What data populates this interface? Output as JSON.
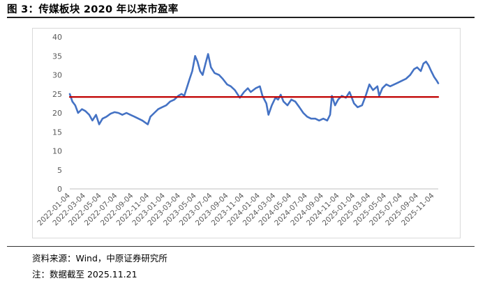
{
  "title": "图 3：传媒板块 2020 年以来市盈率",
  "source": "资料来源：Wind，中原证券研究所",
  "note": "注：数据截至 2025.11.21",
  "chart_data": {
    "type": "line",
    "title": "",
    "xlabel": "",
    "ylabel": "",
    "ylim": [
      0,
      40
    ],
    "yticks": [
      0,
      5,
      10,
      15,
      20,
      25,
      30,
      35,
      40
    ],
    "grid": false,
    "legend": "none",
    "x_tick_labels": [
      "2022-01-04",
      "2022-03-04",
      "2022-05-04",
      "2022-07-04",
      "2022-09-04",
      "2022-11-04",
      "2023-01-04",
      "2023-03-04",
      "2023-05-04",
      "2023-07-04",
      "2023-09-04",
      "2023-11-04",
      "2024-01-04",
      "2024-03-04",
      "2024-05-04",
      "2024-07-04",
      "2024-09-04",
      "2024-11-04",
      "2025-01-04",
      "2025-03-04",
      "2025-05-04",
      "2025-07-04",
      "2025-09-04",
      "2025-11-04"
    ],
    "series": [
      {
        "color": "#4472c4",
        "points": [
          [
            "2022-01-04",
            25.0
          ],
          [
            "2022-01-14",
            23.0
          ],
          [
            "2022-01-25",
            22.0
          ],
          [
            "2022-02-05",
            20.0
          ],
          [
            "2022-02-20",
            21.0
          ],
          [
            "2022-03-05",
            20.5
          ],
          [
            "2022-03-20",
            19.5
          ],
          [
            "2022-04-01",
            18.0
          ],
          [
            "2022-04-15",
            19.5
          ],
          [
            "2022-04-27",
            17.0
          ],
          [
            "2022-05-10",
            18.5
          ],
          [
            "2022-05-25",
            19.0
          ],
          [
            "2022-06-10",
            19.8
          ],
          [
            "2022-06-25",
            20.2
          ],
          [
            "2022-07-10",
            20.0
          ],
          [
            "2022-07-25",
            19.5
          ],
          [
            "2022-08-10",
            20.0
          ],
          [
            "2022-08-25",
            19.5
          ],
          [
            "2022-09-10",
            19.0
          ],
          [
            "2022-09-25",
            18.5
          ],
          [
            "2022-10-10",
            18.0
          ],
          [
            "2022-10-20",
            17.5
          ],
          [
            "2022-10-31",
            17.0
          ],
          [
            "2022-11-10",
            19.0
          ],
          [
            "2022-11-25",
            20.0
          ],
          [
            "2022-12-10",
            21.0
          ],
          [
            "2022-12-25",
            21.5
          ],
          [
            "2023-01-10",
            22.0
          ],
          [
            "2023-01-25",
            23.0
          ],
          [
            "2023-02-10",
            23.5
          ],
          [
            "2023-02-25",
            24.5
          ],
          [
            "2023-03-10",
            25.0
          ],
          [
            "2023-03-20",
            24.5
          ],
          [
            "2023-04-01",
            27.0
          ],
          [
            "2023-04-10",
            29.0
          ],
          [
            "2023-04-20",
            31.0
          ],
          [
            "2023-05-01",
            35.0
          ],
          [
            "2023-05-10",
            33.5
          ],
          [
            "2023-05-20",
            31.0
          ],
          [
            "2023-05-30",
            30.0
          ],
          [
            "2023-06-10",
            33.0
          ],
          [
            "2023-06-20",
            35.5
          ],
          [
            "2023-07-01",
            32.0
          ],
          [
            "2023-07-15",
            30.5
          ],
          [
            "2023-08-01",
            30.0
          ],
          [
            "2023-08-15",
            29.0
          ],
          [
            "2023-09-01",
            27.5
          ],
          [
            "2023-09-15",
            27.0
          ],
          [
            "2023-10-01",
            26.0
          ],
          [
            "2023-10-20",
            24.0
          ],
          [
            "2023-11-05",
            25.5
          ],
          [
            "2023-11-20",
            26.5
          ],
          [
            "2023-12-01",
            25.5
          ],
          [
            "2023-12-20",
            26.5
          ],
          [
            "2024-01-05",
            27.0
          ],
          [
            "2024-01-15",
            24.5
          ],
          [
            "2024-01-30",
            22.5
          ],
          [
            "2024-02-07",
            19.5
          ],
          [
            "2024-02-20",
            22.0
          ],
          [
            "2024-03-05",
            24.0
          ],
          [
            "2024-03-15",
            23.5
          ],
          [
            "2024-03-25",
            24.8
          ],
          [
            "2024-04-05",
            23.0
          ],
          [
            "2024-04-20",
            22.0
          ],
          [
            "2024-05-05",
            23.5
          ],
          [
            "2024-05-20",
            23.0
          ],
          [
            "2024-06-05",
            21.5
          ],
          [
            "2024-06-20",
            20.0
          ],
          [
            "2024-07-05",
            19.0
          ],
          [
            "2024-07-20",
            18.5
          ],
          [
            "2024-08-05",
            18.5
          ],
          [
            "2024-08-20",
            18.0
          ],
          [
            "2024-09-05",
            18.5
          ],
          [
            "2024-09-20",
            18.0
          ],
          [
            "2024-10-01",
            19.5
          ],
          [
            "2024-10-08",
            24.5
          ],
          [
            "2024-10-20",
            22.0
          ],
          [
            "2024-11-01",
            23.5
          ],
          [
            "2024-11-15",
            24.5
          ],
          [
            "2024-12-01",
            24.0
          ],
          [
            "2024-12-15",
            25.5
          ],
          [
            "2025-01-01",
            22.5
          ],
          [
            "2025-01-15",
            21.5
          ],
          [
            "2025-02-01",
            22.0
          ],
          [
            "2025-02-15",
            24.5
          ],
          [
            "2025-03-01",
            27.5
          ],
          [
            "2025-03-15",
            26.0
          ],
          [
            "2025-04-01",
            27.0
          ],
          [
            "2025-04-08",
            24.5
          ],
          [
            "2025-04-20",
            26.5
          ],
          [
            "2025-05-05",
            27.5
          ],
          [
            "2025-05-20",
            27.0
          ],
          [
            "2025-06-05",
            27.5
          ],
          [
            "2025-06-20",
            28.0
          ],
          [
            "2025-07-05",
            28.5
          ],
          [
            "2025-07-20",
            29.0
          ],
          [
            "2025-08-05",
            30.0
          ],
          [
            "2025-08-20",
            31.5
          ],
          [
            "2025-09-01",
            32.0
          ],
          [
            "2025-09-15",
            31.0
          ],
          [
            "2025-09-25",
            33.0
          ],
          [
            "2025-10-05",
            33.5
          ],
          [
            "2025-10-15",
            32.5
          ],
          [
            "2025-10-25",
            31.0
          ],
          [
            "2025-11-05",
            29.5
          ],
          [
            "2025-11-15",
            28.5
          ],
          [
            "2025-11-21",
            27.8
          ]
        ]
      },
      {
        "color": "#c00000",
        "points": [
          [
            "2022-01-04",
            24.2
          ],
          [
            "2025-11-21",
            24.2
          ]
        ]
      }
    ]
  }
}
